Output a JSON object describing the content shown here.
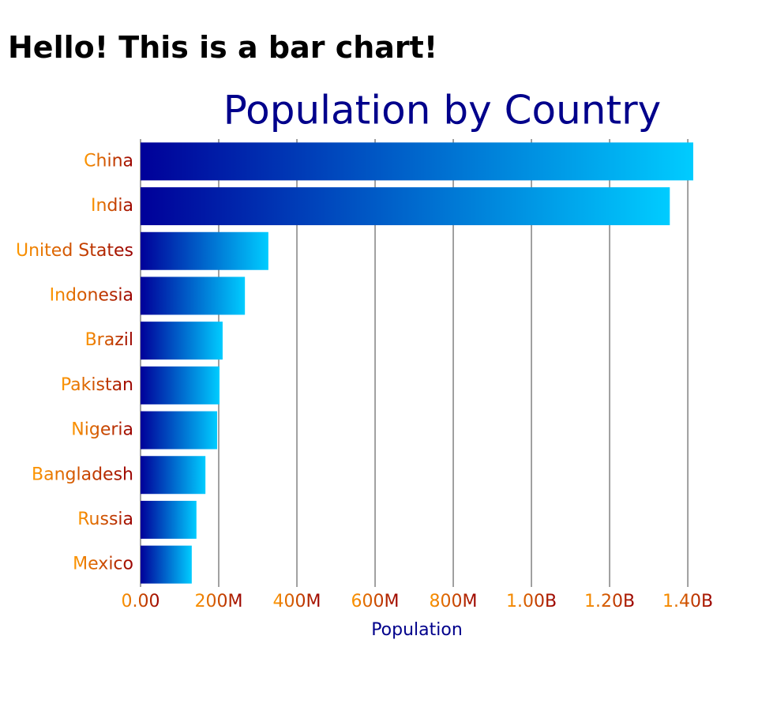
{
  "heading": "Hello! This is a bar chart!",
  "chart_data": {
    "type": "hbar",
    "title": "Population by Country",
    "x_label": "Population",
    "categories": [
      "China",
      "India",
      "United States",
      "Indonesia",
      "Brazil",
      "Pakistan",
      "Nigeria",
      "Bangladesh",
      "Russia",
      "Mexico"
    ],
    "values": [
      1414000000,
      1354000000,
      327000000,
      267000000,
      210000000,
      202000000,
      196000000,
      166000000,
      143000000,
      131000000
    ],
    "bar_gradient": [
      "#000099",
      "#00ccff"
    ],
    "label_gradient": [
      "#ff9900",
      "#990000"
    ],
    "title_color": "#00008b",
    "xlim": [
      0,
      1414000000
    ],
    "xticks": [
      {
        "value": 0,
        "label": "0.00"
      },
      {
        "value": 200000000,
        "label": "200M"
      },
      {
        "value": 400000000,
        "label": "400M"
      },
      {
        "value": 600000000,
        "label": "600M"
      },
      {
        "value": 800000000,
        "label": "800M"
      },
      {
        "value": 1000000000,
        "label": "1.00B"
      },
      {
        "value": 1200000000,
        "label": "1.20B"
      },
      {
        "value": 1400000000,
        "label": "1.40B"
      }
    ],
    "grid": true
  }
}
